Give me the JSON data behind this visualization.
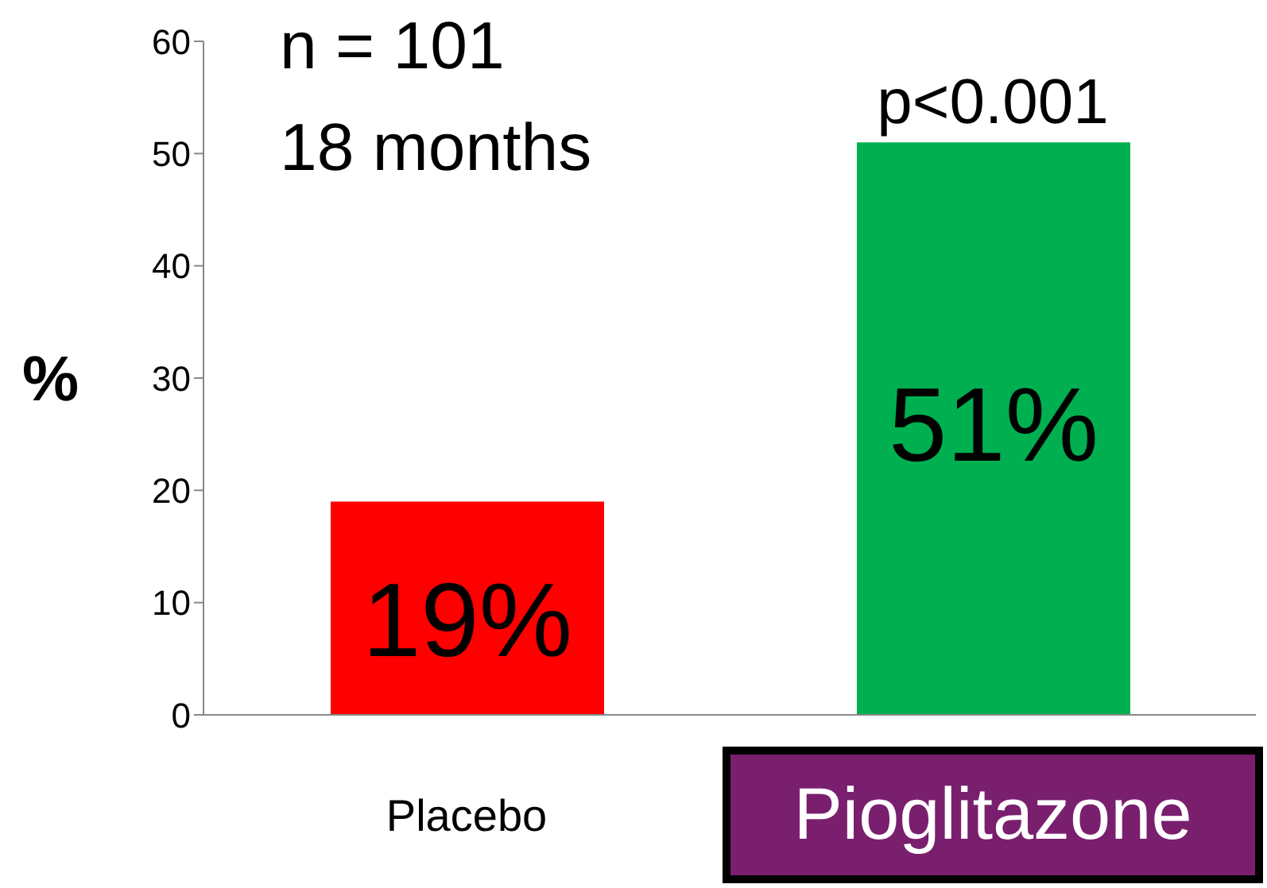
{
  "chart_data": {
    "type": "bar",
    "ylabel": "%",
    "categories": [
      "Placebo",
      "Pioglitazone"
    ],
    "values": [
      19,
      51
    ],
    "colors": [
      "#ff0000",
      "#00b050"
    ],
    "value_labels": [
      "19%",
      "51%"
    ],
    "ylim": [
      0,
      60
    ],
    "yticks": [
      0,
      10,
      20,
      30,
      40,
      50,
      60
    ],
    "grid": false,
    "annotations": [
      "n = 101",
      "18 months",
      {
        "text": "p<0.001",
        "x": "Pioglitazone",
        "y": 51
      }
    ]
  }
}
